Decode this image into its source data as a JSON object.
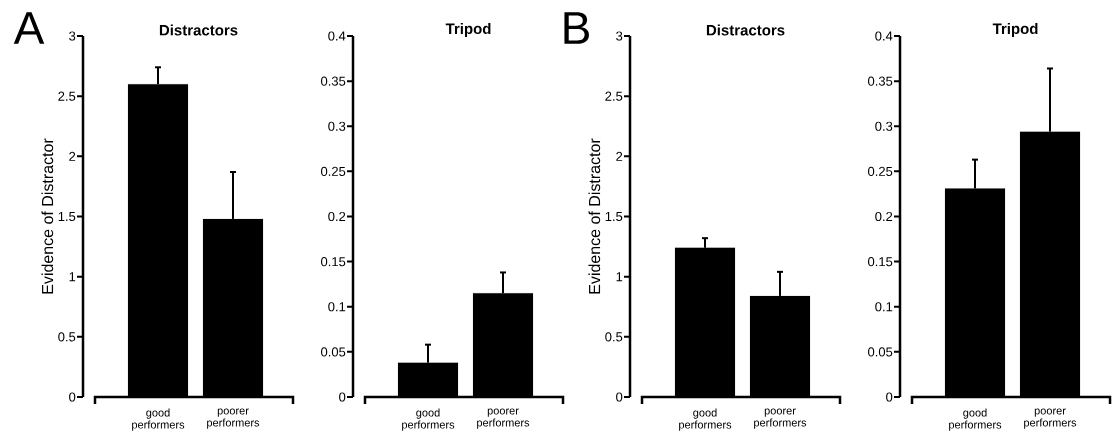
{
  "chart_data": [
    {
      "type": "bar",
      "title": "Distractors",
      "ylabel": "Evidence of Distractor",
      "annotations": [
        "A"
      ],
      "categories": [
        "good performers",
        "poorer performers"
      ],
      "values": [
        2.6,
        1.48
      ],
      "errors": [
        0.14,
        0.39
      ],
      "color": "#000000",
      "ylim": [
        0,
        3
      ],
      "yticks": [
        0,
        0.5,
        1,
        1.5,
        2,
        2.5,
        3
      ]
    },
    {
      "type": "bar",
      "title": "Tripod",
      "categories": [
        "good performers",
        "poorer performers"
      ],
      "values": [
        0.038,
        0.115
      ],
      "errors": [
        0.02,
        0.023
      ],
      "color": "#000000",
      "ylim": [
        0,
        0.4
      ],
      "yticks": [
        0,
        0.05,
        0.1,
        0.15,
        0.2,
        0.25,
        0.3,
        0.35,
        0.4
      ]
    },
    {
      "type": "bar",
      "title": "Distractors",
      "ylabel": "Evidence of Distractor",
      "annotations": [
        "B"
      ],
      "categories": [
        "good performers",
        "poorer performers"
      ],
      "values": [
        1.24,
        0.84
      ],
      "errors": [
        0.08,
        0.2
      ],
      "color": "#000000",
      "ylim": [
        0,
        3
      ],
      "yticks": [
        0,
        0.5,
        1,
        1.5,
        2,
        2.5,
        3
      ]
    },
    {
      "type": "bar",
      "title": "Tripod",
      "categories": [
        "good performers",
        "poorer performers"
      ],
      "values": [
        0.231,
        0.294
      ],
      "errors": [
        0.032,
        0.07
      ],
      "color": "#000000",
      "ylim": [
        0,
        0.4
      ],
      "yticks": [
        0,
        0.05,
        0.1,
        0.15,
        0.2,
        0.25,
        0.3,
        0.35,
        0.4
      ]
    }
  ]
}
